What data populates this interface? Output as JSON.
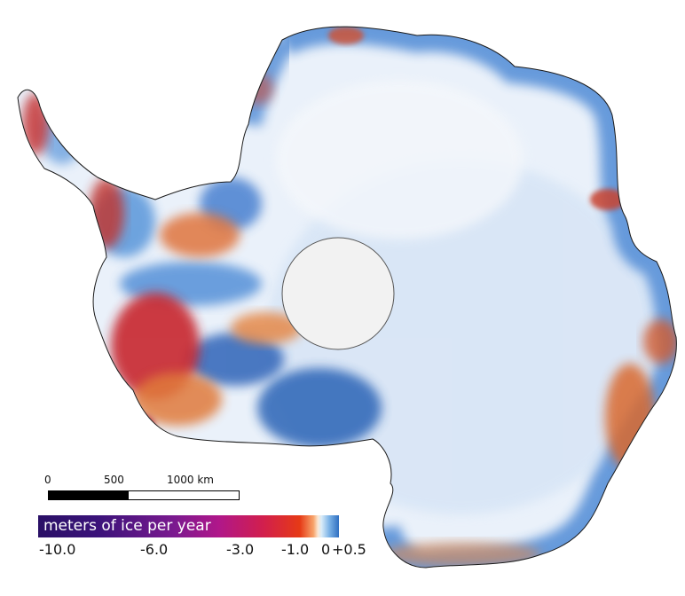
{
  "map": {
    "region": "Antarctica",
    "color_loss": "#c62d2a",
    "color_gain": "#2f70c4",
    "color_stable": "#e8f0fa",
    "pole_hole_color": "#f2f2f2"
  },
  "scale_bar": {
    "labels": [
      "0",
      "500",
      "1000 km"
    ]
  },
  "colorbar": {
    "title": "meters of ice per year",
    "ticks": [
      "-10.0",
      "-6.0",
      "-3.0",
      "-1.0",
      "0",
      "+0.5"
    ]
  }
}
